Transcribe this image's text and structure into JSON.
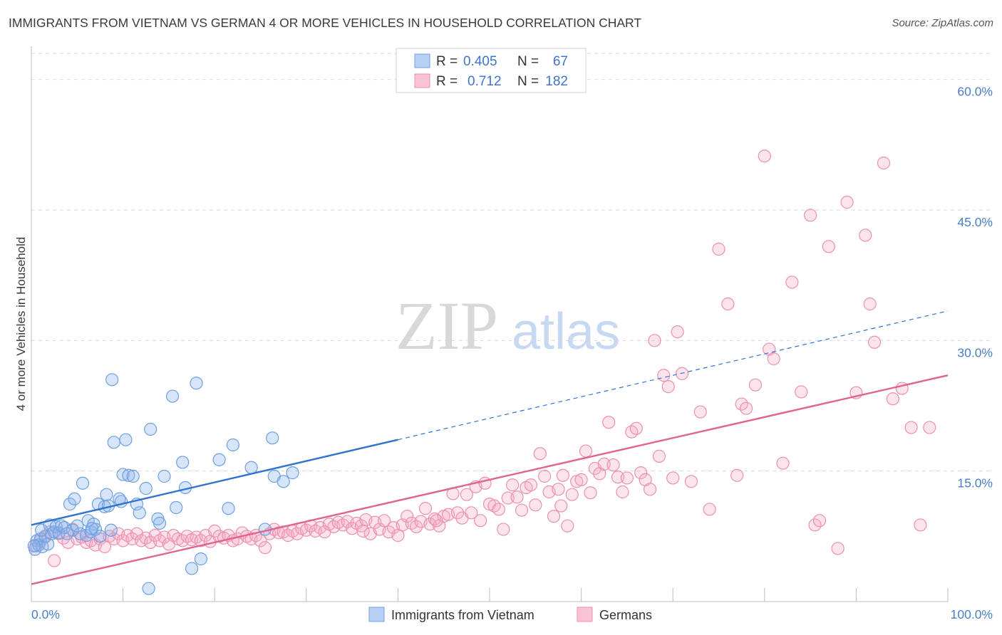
{
  "title": "IMMIGRANTS FROM VIETNAM VS GERMAN 4 OR MORE VEHICLES IN HOUSEHOLD CORRELATION CHART",
  "source": "Source: ZipAtlas.com",
  "watermark": {
    "zip": "ZIP",
    "atlas": "atlas"
  },
  "colors": {
    "blue": "#6f9fe0",
    "blue_fill": "rgba(140,180,235,0.35)",
    "blue_line": "#2f73d0",
    "pink": "#ec90ae",
    "pink_fill": "rgba(245,170,195,0.32)",
    "pink_line": "#e0648f",
    "tick": "#4a7fc8",
    "grid": "#d9d9d9"
  },
  "legend": {
    "rows": [
      {
        "r_label": "R =",
        "r_value": "0.405",
        "n_label": "N =",
        "n_value": "67"
      },
      {
        "r_label": "R =",
        "r_value": "0.712",
        "n_label": "N =",
        "n_value": "182"
      }
    ]
  },
  "bottom_legend": [
    "Immigrants from Vietnam",
    "Germans"
  ],
  "chart_data": {
    "type": "scatter",
    "title": "IMMIGRANTS FROM VIETNAM VS GERMAN 4 OR MORE VEHICLES IN HOUSEHOLD CORRELATION CHART",
    "xlabel": "",
    "ylabel": "4 or more Vehicles in Household",
    "xlim": [
      0,
      100
    ],
    "ylim": [
      0,
      63
    ],
    "x_tick_labels": [
      "0.0%",
      "100.0%"
    ],
    "y_ticks": [
      15,
      30,
      45,
      60
    ],
    "y_tick_labels": [
      "15.0%",
      "30.0%",
      "45.0%",
      "60.0%"
    ],
    "grid": true,
    "legend_position": "top-center",
    "series": [
      {
        "name": "Immigrants from Vietnam",
        "points": [
          [
            0.4,
            6.0
          ],
          [
            0.6,
            7.0
          ],
          [
            0.8,
            6.5
          ],
          [
            1.0,
            7.2
          ],
          [
            1.2,
            6.3
          ],
          [
            1.5,
            7.5
          ],
          [
            1.8,
            6.6
          ],
          [
            2.0,
            8.8
          ],
          [
            2.2,
            7.8
          ],
          [
            2.5,
            8.0
          ],
          [
            2.7,
            8.6
          ],
          [
            3.0,
            7.9
          ],
          [
            3.3,
            8.7
          ],
          [
            3.6,
            8.5
          ],
          [
            4.2,
            11.2
          ],
          [
            4.5,
            8.2
          ],
          [
            4.7,
            11.8
          ],
          [
            5.3,
            7.8
          ],
          [
            5.6,
            13.6
          ],
          [
            6.0,
            7.6
          ],
          [
            6.2,
            9.3
          ],
          [
            6.5,
            8.0
          ],
          [
            6.8,
            8.9
          ],
          [
            7.0,
            8.3
          ],
          [
            7.5,
            7.5
          ],
          [
            7.3,
            11.2
          ],
          [
            8.0,
            10.9
          ],
          [
            8.2,
            12.3
          ],
          [
            8.4,
            11.0
          ],
          [
            8.7,
            8.2
          ],
          [
            8.8,
            25.5
          ],
          [
            9.0,
            18.3
          ],
          [
            9.8,
            11.5
          ],
          [
            9.6,
            11.8
          ],
          [
            10.0,
            14.6
          ],
          [
            10.3,
            18.6
          ],
          [
            10.6,
            14.5
          ],
          [
            11.1,
            14.4
          ],
          [
            11.5,
            11.2
          ],
          [
            11.8,
            10.2
          ],
          [
            12.5,
            13.0
          ],
          [
            12.8,
            1.5
          ],
          [
            13.0,
            19.8
          ],
          [
            13.8,
            9.5
          ],
          [
            14.0,
            9.0
          ],
          [
            14.5,
            14.4
          ],
          [
            15.4,
            23.6
          ],
          [
            15.8,
            10.8
          ],
          [
            16.5,
            16.0
          ],
          [
            16.8,
            13.1
          ],
          [
            17.5,
            3.8
          ],
          [
            18.0,
            25.1
          ],
          [
            18.5,
            4.9
          ],
          [
            20.5,
            16.3
          ],
          [
            21.5,
            10.7
          ],
          [
            22.0,
            18.0
          ],
          [
            24.0,
            15.4
          ],
          [
            25.5,
            8.3
          ],
          [
            26.3,
            18.8
          ],
          [
            26.5,
            14.4
          ],
          [
            27.5,
            13.8
          ],
          [
            28.5,
            14.8
          ],
          [
            3.9,
            7.8
          ],
          [
            5.0,
            8.7
          ],
          [
            1.1,
            8.2
          ],
          [
            0.3,
            6.4
          ],
          [
            6.6,
            8.4
          ]
        ],
        "trend_solid": {
          "x": [
            0,
            40
          ],
          "y": [
            8.8,
            18.6
          ]
        },
        "trend_dashed": {
          "x": [
            40,
            100
          ],
          "y": [
            18.6,
            33.4
          ]
        }
      },
      {
        "name": "Germans",
        "points": [
          [
            0.5,
            6.4
          ],
          [
            1.0,
            7.0
          ],
          [
            1.5,
            7.4
          ],
          [
            2.0,
            8.0
          ],
          [
            2.5,
            4.7
          ],
          [
            3.0,
            7.8
          ],
          [
            3.5,
            7.3
          ],
          [
            4.0,
            6.8
          ],
          [
            4.5,
            8.3
          ],
          [
            5.0,
            7.2
          ],
          [
            5.5,
            7.4
          ],
          [
            6.0,
            6.8
          ],
          [
            6.5,
            7.0
          ],
          [
            7.0,
            6.5
          ],
          [
            7.5,
            7.2
          ],
          [
            8.0,
            6.3
          ],
          [
            8.5,
            7.5
          ],
          [
            9.0,
            7.2
          ],
          [
            9.5,
            7.8
          ],
          [
            10.0,
            7.0
          ],
          [
            10.5,
            7.6
          ],
          [
            11.0,
            7.2
          ],
          [
            11.5,
            7.8
          ],
          [
            12.0,
            7.0
          ],
          [
            12.5,
            7.3
          ],
          [
            13.0,
            6.8
          ],
          [
            13.5,
            7.6
          ],
          [
            14.0,
            7.0
          ],
          [
            14.5,
            7.4
          ],
          [
            15.0,
            6.6
          ],
          [
            15.5,
            7.6
          ],
          [
            16.0,
            7.2
          ],
          [
            16.5,
            7.0
          ],
          [
            17.0,
            7.5
          ],
          [
            17.5,
            7.1
          ],
          [
            18.0,
            7.4
          ],
          [
            18.5,
            7.0
          ],
          [
            19.0,
            7.6
          ],
          [
            19.5,
            6.9
          ],
          [
            20.0,
            8.1
          ],
          [
            20.5,
            7.5
          ],
          [
            21.0,
            7.3
          ],
          [
            21.5,
            7.6
          ],
          [
            22.0,
            7.0
          ],
          [
            22.5,
            7.2
          ],
          [
            23.0,
            7.9
          ],
          [
            23.5,
            7.5
          ],
          [
            24.0,
            7.2
          ],
          [
            24.5,
            7.6
          ],
          [
            25.0,
            7.0
          ],
          [
            25.5,
            6.2
          ],
          [
            26.0,
            7.8
          ],
          [
            26.5,
            8.3
          ],
          [
            27.0,
            7.9
          ],
          [
            27.5,
            8.0
          ],
          [
            28.0,
            7.6
          ],
          [
            28.5,
            8.1
          ],
          [
            29.0,
            7.8
          ],
          [
            29.5,
            8.4
          ],
          [
            30.0,
            8.2
          ],
          [
            30.5,
            8.7
          ],
          [
            31.0,
            8.1
          ],
          [
            31.5,
            8.5
          ],
          [
            32.0,
            8.0
          ],
          [
            32.5,
            8.9
          ],
          [
            33.0,
            8.6
          ],
          [
            33.5,
            9.1
          ],
          [
            34.0,
            8.8
          ],
          [
            34.5,
            9.2
          ],
          [
            35.0,
            8.4
          ],
          [
            35.5,
            9.0
          ],
          [
            36.0,
            8.7
          ],
          [
            36.5,
            9.4
          ],
          [
            37.0,
            7.8
          ],
          [
            37.5,
            9.1
          ],
          [
            38.0,
            8.3
          ],
          [
            38.5,
            9.3
          ],
          [
            39.0,
            8.0
          ],
          [
            39.5,
            8.5
          ],
          [
            40.0,
            7.6
          ],
          [
            40.5,
            8.8
          ],
          [
            41.0,
            9.8
          ],
          [
            41.5,
            9.0
          ],
          [
            42.0,
            8.6
          ],
          [
            42.5,
            9.2
          ],
          [
            43.0,
            10.7
          ],
          [
            43.5,
            8.9
          ],
          [
            44.0,
            9.5
          ],
          [
            44.5,
            8.7
          ],
          [
            45.0,
            9.8
          ],
          [
            45.5,
            10.0
          ],
          [
            46.0,
            12.4
          ],
          [
            46.5,
            10.2
          ],
          [
            47.0,
            9.6
          ],
          [
            47.5,
            12.3
          ],
          [
            48.0,
            10.2
          ],
          [
            48.5,
            13.2
          ],
          [
            49.0,
            9.3
          ],
          [
            49.5,
            13.6
          ],
          [
            50.0,
            11.2
          ],
          [
            50.5,
            11.0
          ],
          [
            51.0,
            10.6
          ],
          [
            51.5,
            8.3
          ],
          [
            52.0,
            11.9
          ],
          [
            52.5,
            13.4
          ],
          [
            53.0,
            12.0
          ],
          [
            53.5,
            10.5
          ],
          [
            54.0,
            13.1
          ],
          [
            54.5,
            13.4
          ],
          [
            55.0,
            11.1
          ],
          [
            55.5,
            17.0
          ],
          [
            56.0,
            14.4
          ],
          [
            56.5,
            12.6
          ],
          [
            57.0,
            9.8
          ],
          [
            57.5,
            12.9
          ],
          [
            58.0,
            14.5
          ],
          [
            58.5,
            8.7
          ],
          [
            59.0,
            12.3
          ],
          [
            59.5,
            13.8
          ],
          [
            60.0,
            14.0
          ],
          [
            60.5,
            17.3
          ],
          [
            61.0,
            12.5
          ],
          [
            61.5,
            15.3
          ],
          [
            62.0,
            14.7
          ],
          [
            62.5,
            15.8
          ],
          [
            63.0,
            20.6
          ],
          [
            63.5,
            15.7
          ],
          [
            64.0,
            14.3
          ],
          [
            64.5,
            12.6
          ],
          [
            65.0,
            14.2
          ],
          [
            65.5,
            19.5
          ],
          [
            66.0,
            19.9
          ],
          [
            66.5,
            14.8
          ],
          [
            67.0,
            14.0
          ],
          [
            67.5,
            12.9
          ],
          [
            68.0,
            30.0
          ],
          [
            68.5,
            16.7
          ],
          [
            69.0,
            26.0
          ],
          [
            69.5,
            24.7
          ],
          [
            70.0,
            14.2
          ],
          [
            70.5,
            31.0
          ],
          [
            71.0,
            26.2
          ],
          [
            72.0,
            13.8
          ],
          [
            73.0,
            21.8
          ],
          [
            74.0,
            10.6
          ],
          [
            75.0,
            40.5
          ],
          [
            76.0,
            34.2
          ],
          [
            77.0,
            14.5
          ],
          [
            77.5,
            22.7
          ],
          [
            78.0,
            22.2
          ],
          [
            79.0,
            24.9
          ],
          [
            80.0,
            51.2
          ],
          [
            80.5,
            29.0
          ],
          [
            81.0,
            27.9
          ],
          [
            82.0,
            15.9
          ],
          [
            83.0,
            36.7
          ],
          [
            84.0,
            24.1
          ],
          [
            85.0,
            44.4
          ],
          [
            85.5,
            8.8
          ],
          [
            86.0,
            9.3
          ],
          [
            87.0,
            40.8
          ],
          [
            88.0,
            6.1
          ],
          [
            89.0,
            45.9
          ],
          [
            90.0,
            24.0
          ],
          [
            91.0,
            42.1
          ],
          [
            91.5,
            34.2
          ],
          [
            92.0,
            29.8
          ],
          [
            93.0,
            50.4
          ],
          [
            94.0,
            23.3
          ],
          [
            95.0,
            24.5
          ],
          [
            96.0,
            20.0
          ],
          [
            97.0,
            8.8
          ],
          [
            98.0,
            20.0
          ],
          [
            36.2,
            8.1
          ],
          [
            44.2,
            9.3
          ],
          [
            57.8,
            11.0
          ]
        ],
        "trend_solid": {
          "x": [
            0,
            100
          ],
          "y": [
            2.0,
            26.0
          ]
        }
      }
    ]
  }
}
